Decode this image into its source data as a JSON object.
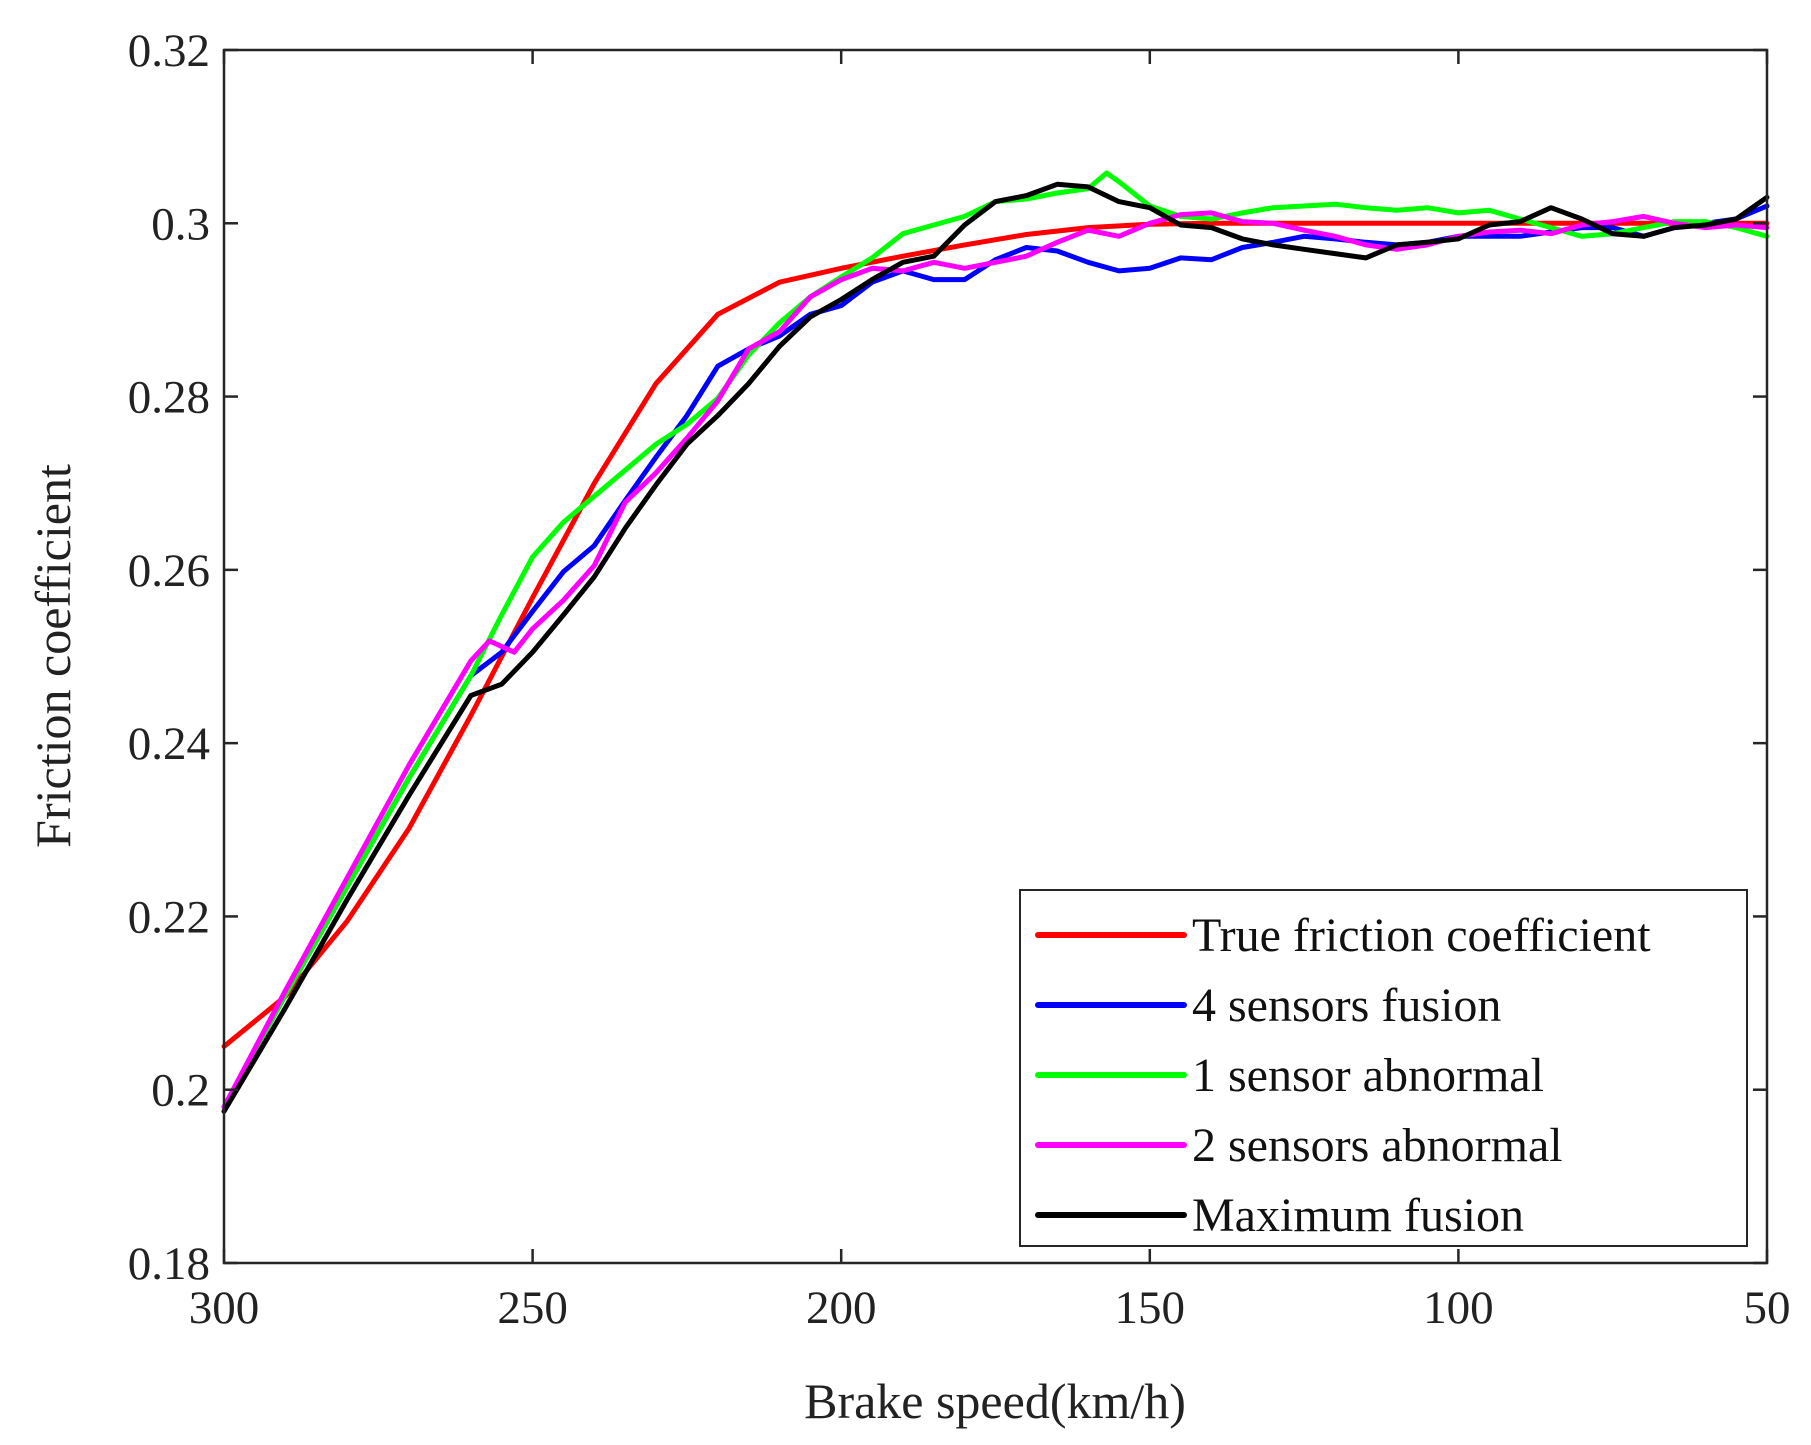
{
  "chart_data": {
    "type": "line",
    "title": "",
    "xlabel": "Brake speed(km/h)",
    "ylabel": "Friction coefficient",
    "xlim": [
      300,
      50
    ],
    "ylim": [
      0.18,
      0.32
    ],
    "x_reversed": true,
    "grid": false,
    "legend_position": "bottom-right",
    "xticks": [
      300,
      250,
      200,
      150,
      100,
      50
    ],
    "xtick_labels": [
      "300",
      "250",
      "200",
      "150",
      "100",
      "50"
    ],
    "yticks": [
      0.18,
      0.2,
      0.22,
      0.24,
      0.26,
      0.28,
      0.3,
      0.32
    ],
    "ytick_labels": [
      "0.18",
      "0.2",
      "0.22",
      "0.24",
      "0.26",
      "0.28",
      "0.3",
      "0.32"
    ],
    "series": [
      {
        "name": "True friction coefficient",
        "color": "#ff0000",
        "x": [
          300,
          290,
          280,
          270,
          260,
          250,
          240,
          230,
          220,
          210,
          200,
          190,
          180,
          170,
          160,
          150,
          140,
          120,
          100,
          80,
          50
        ],
        "y": [
          0.205,
          0.2108,
          0.2195,
          0.2302,
          0.2432,
          0.2568,
          0.27,
          0.2815,
          0.2895,
          0.2932,
          0.2948,
          0.2962,
          0.2975,
          0.2987,
          0.2995,
          0.2999,
          0.3,
          0.3,
          0.3,
          0.3,
          0.3
        ]
      },
      {
        "name": "4 sensors fusion",
        "color": "#0000ff",
        "x": [
          300,
          290,
          280,
          270,
          260,
          255,
          250,
          245,
          240,
          235,
          230,
          225,
          220,
          215,
          210,
          205,
          200,
          195,
          190,
          185,
          180,
          175,
          170,
          165,
          160,
          155,
          150,
          145,
          140,
          135,
          130,
          125,
          120,
          115,
          110,
          105,
          100,
          95,
          90,
          85,
          80,
          75,
          70,
          65,
          60,
          55,
          50
        ],
        "y": [
          0.198,
          0.211,
          0.2235,
          0.236,
          0.2478,
          0.2505,
          0.2552,
          0.2598,
          0.2628,
          0.268,
          0.273,
          0.2778,
          0.2835,
          0.2855,
          0.287,
          0.2895,
          0.2905,
          0.2932,
          0.2945,
          0.2935,
          0.2935,
          0.2958,
          0.2972,
          0.2968,
          0.2955,
          0.2945,
          0.2948,
          0.296,
          0.2958,
          0.2972,
          0.2978,
          0.2985,
          0.2982,
          0.2978,
          0.2975,
          0.2978,
          0.2985,
          0.2985,
          0.2985,
          0.299,
          0.2995,
          0.2995,
          0.2985,
          0.2995,
          0.3,
          0.3005,
          0.302
        ]
      },
      {
        "name": "1 sensor abnormal",
        "color": "#00ff00",
        "x": [
          300,
          290,
          280,
          270,
          260,
          255,
          250,
          245,
          240,
          235,
          230,
          225,
          220,
          215,
          210,
          205,
          200,
          195,
          190,
          185,
          180,
          175,
          170,
          165,
          160,
          157,
          155,
          150,
          145,
          140,
          135,
          130,
          125,
          120,
          115,
          110,
          105,
          100,
          95,
          90,
          85,
          80,
          75,
          70,
          65,
          60,
          55,
          50
        ],
        "y": [
          0.198,
          0.211,
          0.2235,
          0.236,
          0.2478,
          0.2548,
          0.2615,
          0.2655,
          0.2685,
          0.2715,
          0.2745,
          0.2768,
          0.2798,
          0.2848,
          0.2885,
          0.2915,
          0.2938,
          0.296,
          0.2988,
          0.2998,
          0.3008,
          0.3025,
          0.3028,
          0.3035,
          0.304,
          0.3058,
          0.3048,
          0.302,
          0.3008,
          0.3005,
          0.3012,
          0.3018,
          0.302,
          0.3022,
          0.3018,
          0.3015,
          0.3018,
          0.3012,
          0.3015,
          0.3005,
          0.2995,
          0.2985,
          0.2988,
          0.2995,
          0.3002,
          0.3002,
          0.2995,
          0.2985
        ]
      },
      {
        "name": "2 sensors abnormal",
        "color": "#ff00ff",
        "x": [
          300,
          290,
          280,
          270,
          260,
          257,
          253,
          250,
          245,
          240,
          235,
          230,
          225,
          220,
          215,
          210,
          205,
          200,
          195,
          190,
          185,
          180,
          175,
          170,
          165,
          160,
          155,
          150,
          145,
          140,
          135,
          130,
          125,
          120,
          115,
          110,
          105,
          100,
          95,
          90,
          85,
          80,
          75,
          70,
          65,
          60,
          55,
          50
        ],
        "y": [
          0.198,
          0.2115,
          0.2245,
          0.2375,
          0.2495,
          0.2518,
          0.2505,
          0.2532,
          0.2565,
          0.2605,
          0.2678,
          0.2712,
          0.2752,
          0.2795,
          0.2855,
          0.2875,
          0.2915,
          0.2935,
          0.2948,
          0.2945,
          0.2955,
          0.2948,
          0.2955,
          0.2962,
          0.2978,
          0.2992,
          0.2985,
          0.3,
          0.301,
          0.3012,
          0.3002,
          0.3,
          0.2992,
          0.2985,
          0.2975,
          0.297,
          0.2975,
          0.2985,
          0.299,
          0.2992,
          0.2988,
          0.2998,
          0.3002,
          0.3008,
          0.3,
          0.2995,
          0.2998,
          0.2995
        ]
      },
      {
        "name": "Maximum fusion",
        "color": "#000000",
        "x": [
          300,
          290,
          280,
          270,
          260,
          255,
          250,
          245,
          240,
          235,
          230,
          225,
          220,
          215,
          210,
          205,
          200,
          195,
          190,
          185,
          180,
          175,
          170,
          165,
          160,
          155,
          150,
          145,
          140,
          135,
          130,
          125,
          120,
          115,
          110,
          105,
          100,
          95,
          90,
          85,
          80,
          75,
          70,
          65,
          60,
          55,
          50
        ],
        "y": [
          0.1975,
          0.2095,
          0.222,
          0.234,
          0.2455,
          0.2468,
          0.2505,
          0.2548,
          0.2592,
          0.2648,
          0.2698,
          0.2745,
          0.2778,
          0.2815,
          0.2858,
          0.2892,
          0.2912,
          0.2935,
          0.2955,
          0.2962,
          0.2998,
          0.3025,
          0.3032,
          0.3045,
          0.3042,
          0.3025,
          0.3018,
          0.2998,
          0.2995,
          0.2982,
          0.2975,
          0.297,
          0.2965,
          0.296,
          0.2975,
          0.2978,
          0.2982,
          0.2998,
          0.3002,
          0.3018,
          0.3005,
          0.2988,
          0.2985,
          0.2995,
          0.2998,
          0.3005,
          0.303
        ]
      }
    ]
  }
}
